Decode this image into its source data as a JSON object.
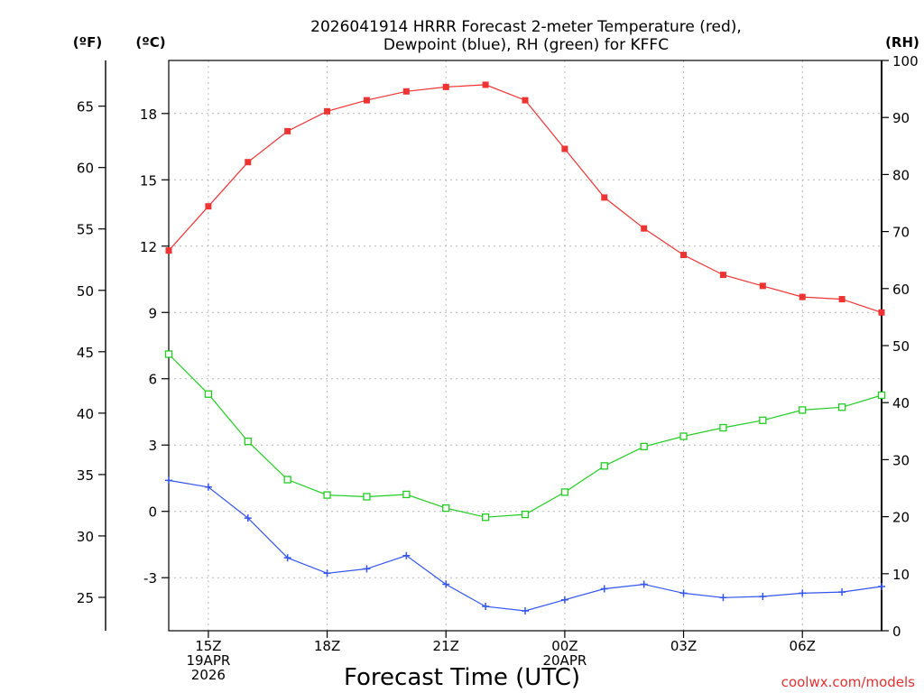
{
  "chart_data": {
    "type": "line",
    "title_line1": "2026041914 HRRR Forecast 2-meter Temperature (red),",
    "title_line2": "Dewpoint (blue), RH (green) for KFFC",
    "xlabel": "Forecast Time (UTC)",
    "credit": "coolwx.com/models",
    "units": {
      "fahrenheit": "(ºF)",
      "celsius": "(ºC)",
      "rh": "(RH)"
    },
    "x_hours": [
      14,
      15,
      16,
      17,
      18,
      19,
      20,
      21,
      22,
      23,
      24,
      25,
      26,
      27,
      28,
      29,
      30,
      31,
      32
    ],
    "xlim": [
      14,
      32
    ],
    "x_ticks": [
      {
        "hour": 15,
        "lines": [
          "15Z",
          "19APR",
          "2026"
        ]
      },
      {
        "hour": 18,
        "lines": [
          "18Z"
        ]
      },
      {
        "hour": 21,
        "lines": [
          "21Z"
        ]
      },
      {
        "hour": 24,
        "lines": [
          "00Z",
          "20APR"
        ]
      },
      {
        "hour": 27,
        "lines": [
          "03Z"
        ]
      },
      {
        "hour": 30,
        "lines": [
          "06Z"
        ]
      }
    ],
    "celsius_axis": {
      "range": [
        -5.4,
        20.4
      ],
      "ticks": [
        -3,
        0,
        3,
        6,
        9,
        12,
        15,
        18
      ],
      "labels": [
        "-3",
        "0",
        "3",
        "6",
        "9",
        "12",
        "15",
        "18"
      ]
    },
    "fahrenheit_axis": {
      "range": [
        22.28,
        68.72
      ],
      "ticks": [
        25,
        30,
        35,
        40,
        45,
        50,
        55,
        60,
        65
      ],
      "labels": [
        "25",
        "30",
        "35",
        "40",
        "45",
        "50",
        "55",
        "60",
        "65"
      ]
    },
    "rh_axis": {
      "range": [
        0,
        100
      ],
      "ticks": [
        0,
        10,
        20,
        30,
        40,
        50,
        60,
        70,
        80,
        90,
        100
      ],
      "labels": [
        "0",
        "10",
        "20",
        "30",
        "40",
        "50",
        "60",
        "70",
        "80",
        "90",
        "100"
      ]
    },
    "series": [
      {
        "name": "Temperature",
        "unit": "C",
        "color": "#ee3333",
        "marker": "filled-square",
        "values": [
          11.8,
          13.8,
          15.8,
          17.2,
          18.1,
          18.6,
          19.0,
          19.2,
          19.3,
          18.6,
          16.4,
          14.2,
          12.8,
          11.6,
          10.7,
          10.2,
          9.7,
          9.6,
          9.0
        ]
      },
      {
        "name": "Dewpoint",
        "unit": "C",
        "color": "#3355ee",
        "marker": "plus",
        "values": [
          1.4,
          1.1,
          -0.3,
          -2.1,
          -2.8,
          -2.6,
          -2.0,
          -3.3,
          -4.3,
          -4.5,
          -4.0,
          -3.5,
          -3.3,
          -3.7,
          -3.9,
          -3.85,
          -3.7,
          -3.65,
          -3.4
        ]
      },
      {
        "name": "Relative Humidity",
        "unit": "%",
        "color": "#22cc22",
        "marker": "open-square",
        "values": [
          48.5,
          41.5,
          33.2,
          26.5,
          23.8,
          23.5,
          23.9,
          21.5,
          19.9,
          20.4,
          24.3,
          28.9,
          32.3,
          34.1,
          35.6,
          36.9,
          38.7,
          39.2,
          41.3
        ]
      }
    ]
  }
}
